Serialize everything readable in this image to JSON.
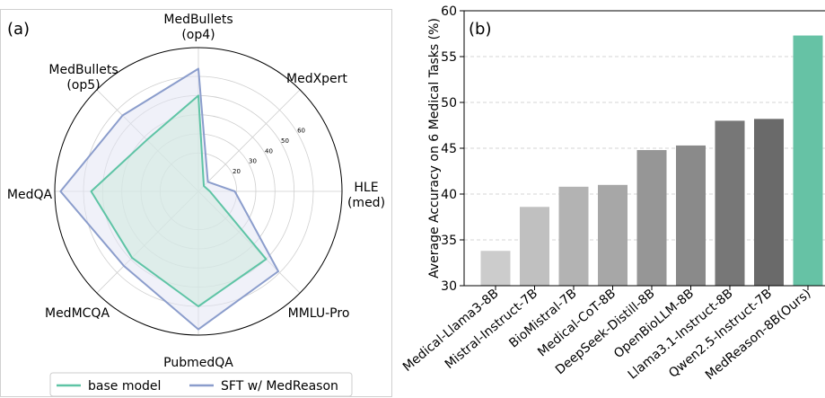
{
  "chart_data": [
    {
      "type": "radar",
      "panel_label": "(a)",
      "axes": [
        {
          "label_lines": [
            "MedBullets",
            "(op4)"
          ]
        },
        {
          "label_lines": [
            "MedXpert"
          ]
        },
        {
          "label_lines": [
            "HLE",
            "(med)"
          ]
        },
        {
          "label_lines": [
            "MMLU-Pro"
          ]
        },
        {
          "label_lines": [
            "PubmedQA"
          ]
        },
        {
          "label_lines": [
            "MedMCQA"
          ]
        },
        {
          "label_lines": [
            "MedQA"
          ]
        },
        {
          "label_lines": [
            "MedBullets",
            "(op5)"
          ]
        }
      ],
      "radial_ticks": [
        20,
        30,
        40,
        50,
        60
      ],
      "rlim": [
        0,
        75
      ],
      "series": [
        {
          "name": "base model",
          "color": "#5ec4a5",
          "fill": "#cfe9de",
          "values": [
            50,
            4,
            6,
            50,
            60,
            49,
            56,
            38
          ]
        },
        {
          "name": "SFT w/ MedReason",
          "color": "#8b9dcc",
          "fill": "#e4e6f4",
          "values": [
            64,
            7,
            19,
            59,
            72,
            55,
            72,
            56
          ]
        }
      ],
      "legend": {
        "placement": "bottom",
        "entries": [
          "base model",
          "SFT w/ MedReason"
        ]
      }
    },
    {
      "type": "bar",
      "panel_label": "(b)",
      "ylabel": "Average Accuracy on 6 Medical Tasks (%)",
      "ylim": [
        30,
        60
      ],
      "yticks": [
        30,
        35,
        40,
        45,
        50,
        55,
        60
      ],
      "grid": "horizontal dashed",
      "categories": [
        "Medical-Llama3-8B",
        "Mistral-Instruct-7B",
        "BioMistral-7B",
        "Medical-CoT-8B",
        "DeepSeek-Distill-8B",
        "OpenBioLLM-8B",
        "Llama3.1-Instruct-8B",
        "Qwen2.5-Instruct-7B",
        "MedReason-8B(Ours)"
      ],
      "values": [
        33.8,
        38.6,
        40.8,
        41.0,
        44.8,
        45.3,
        48.0,
        48.2,
        57.3
      ],
      "colors": [
        "#cccccc",
        "#c0c0c0",
        "#b3b3b3",
        "#a7a7a7",
        "#969696",
        "#8a8a8a",
        "#777777",
        "#6a6a6a",
        "#66c2a5"
      ]
    }
  ]
}
